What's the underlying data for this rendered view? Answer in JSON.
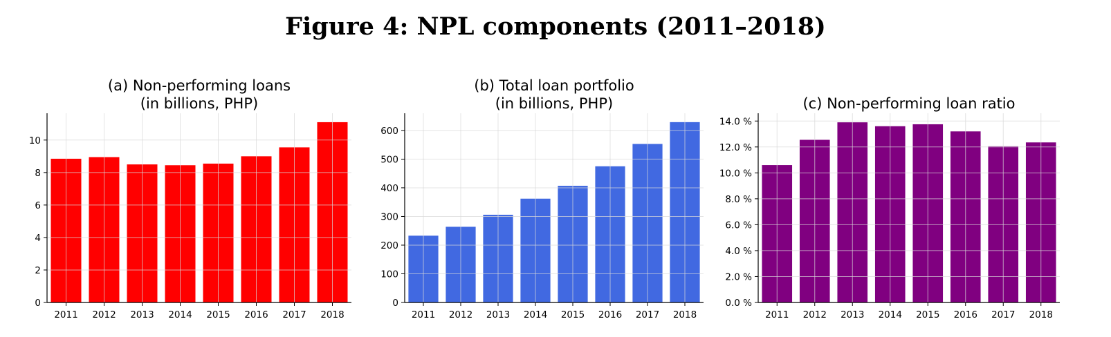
{
  "figure_title": "Figure 4: NPL components (2011–2018)",
  "chart_data": [
    {
      "type": "bar",
      "title": "(a) Non-performing loans",
      "subtitle": "(in billions, PHP)",
      "categories": [
        "2011",
        "2012",
        "2013",
        "2014",
        "2015",
        "2016",
        "2017",
        "2018"
      ],
      "values": [
        8.85,
        8.95,
        8.5,
        8.45,
        8.55,
        9.0,
        9.55,
        11.1
      ],
      "ylim": [
        0,
        11.65
      ],
      "yticks": [
        0,
        2,
        4,
        6,
        8,
        10
      ],
      "ytick_labels": [
        "0",
        "2",
        "4",
        "6",
        "8",
        "10"
      ],
      "color": "#ff0000",
      "grid": true,
      "xlabel": "",
      "ylabel": ""
    },
    {
      "type": "bar",
      "title": "(b) Total loan portfolio",
      "subtitle": "(in billions, PHP)",
      "categories": [
        "2011",
        "2012",
        "2013",
        "2014",
        "2015",
        "2016",
        "2017",
        "2018"
      ],
      "values": [
        233,
        264,
        306,
        362,
        407,
        475,
        553,
        629
      ],
      "ylim": [
        0,
        660
      ],
      "yticks": [
        0,
        100,
        200,
        300,
        400,
        500,
        600
      ],
      "ytick_labels": [
        "0",
        "100",
        "200",
        "300",
        "400",
        "500",
        "600"
      ],
      "color": "#4169e1",
      "grid": true,
      "xlabel": "",
      "ylabel": ""
    },
    {
      "type": "bar",
      "title": "(c) Non-performing loan ratio",
      "subtitle": "",
      "categories": [
        "2011",
        "2012",
        "2013",
        "2014",
        "2015",
        "2016",
        "2017",
        "2018"
      ],
      "values": [
        10.6,
        12.55,
        13.9,
        13.6,
        13.75,
        13.2,
        12.05,
        12.35
      ],
      "ylim": [
        0,
        14.6
      ],
      "yticks": [
        0,
        2,
        4,
        6,
        8,
        10,
        12,
        14
      ],
      "ytick_labels": [
        "0.0 %",
        "2.0 %",
        "4.0 %",
        "6.0 %",
        "8.0 %",
        "10.0 %",
        "12.0 %",
        "14.0 %"
      ],
      "color": "#800080",
      "grid": true,
      "xlabel": "",
      "ylabel": ""
    }
  ]
}
